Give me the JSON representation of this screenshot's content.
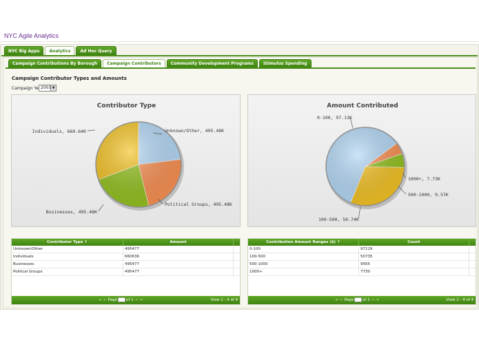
{
  "app": {
    "title": "NYC Agile Analytics"
  },
  "top_tabs": [
    {
      "label": "NYC Big Apps",
      "active": false
    },
    {
      "label": "Analytics",
      "active": true
    },
    {
      "label": "Ad Hoc Query",
      "active": false
    }
  ],
  "sub_tabs": [
    {
      "label": "Campaign Contributions By Borough",
      "active": false
    },
    {
      "label": "Campaign Contributors",
      "active": true
    },
    {
      "label": "Community Development Programs",
      "active": false
    },
    {
      "label": "Stimulus Spending",
      "active": false
    }
  ],
  "section": {
    "title": "Campaign Contributor Types and Amounts",
    "year_label": "Campaign Year:",
    "year_value": "2001"
  },
  "chart_data": [
    {
      "type": "pie",
      "title": "Contributor Type",
      "slices": [
        {
          "label": "Unknown/Other",
          "value": 495477,
          "display": "Unknown/Other, 495.48K",
          "color": "#b3d7f5"
        },
        {
          "label": "Political Groups",
          "value": 495477,
          "display": "Political Groups, 495.48K",
          "color": "#f99052"
        },
        {
          "label": "Businesses",
          "value": 495477,
          "display": "Businesses, 495.48K",
          "color": "#93c11f"
        },
        {
          "label": "Individuals",
          "value": 660636,
          "display": "Individuals, 660.64K",
          "color": "#f3c224"
        }
      ]
    },
    {
      "type": "pie",
      "title": "Amount Contributed",
      "slices": [
        {
          "label": "0-100",
          "value": 97129,
          "display": "0-100, 97.13K",
          "color": "#b3d7f5"
        },
        {
          "label": "1000+",
          "value": 7730,
          "display": "1000+, 7.73K",
          "color": "#f99052"
        },
        {
          "label": "500-1000",
          "value": 9565,
          "display": "500-1000, 9.57K",
          "color": "#93c11f"
        },
        {
          "label": "100-500",
          "value": 50735,
          "display": "100-500, 50.74K",
          "color": "#f3c224"
        }
      ]
    }
  ],
  "grids": [
    {
      "columns": [
        "Contributor Type ↑",
        "Amount"
      ],
      "rows": [
        [
          "Unknown/Other",
          "495477"
        ],
        [
          "Individuals",
          "660636"
        ],
        [
          "Businesses",
          "495477"
        ],
        [
          "Political Groups",
          "495477"
        ]
      ],
      "pager": {
        "page_label": "Page",
        "of_label": "of 1",
        "view": "View 1 - 4 of 4"
      }
    },
    {
      "columns": [
        "Contribution Amount Ranges ($) ↑",
        "Count"
      ],
      "rows": [
        [
          "0-100",
          "97129"
        ],
        [
          "100-500",
          "50735"
        ],
        [
          "500-1000",
          "9565"
        ],
        [
          "1000+",
          "7730"
        ]
      ],
      "pager": {
        "page_label": "Page",
        "of_label": "of 1",
        "view": "View 1 - 4 of 4"
      }
    }
  ]
}
